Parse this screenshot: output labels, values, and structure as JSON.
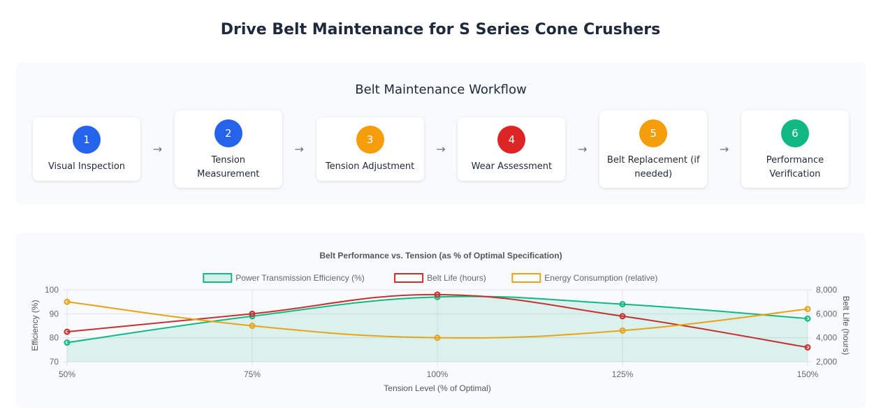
{
  "page": {
    "title": "Drive Belt Maintenance for S Series Cone Crushers"
  },
  "workflow": {
    "title": "Belt Maintenance Workflow",
    "arrow": "→",
    "steps": [
      {
        "number": "1",
        "label": "Visual Inspection",
        "color": "#2563eb"
      },
      {
        "number": "2",
        "label": "Tension Measurement",
        "color": "#2563eb"
      },
      {
        "number": "3",
        "label": "Tension Adjustment",
        "color": "#f59e0b"
      },
      {
        "number": "4",
        "label": "Wear Assessment",
        "color": "#dc2626"
      },
      {
        "number": "5",
        "label": "Belt Replacement (if needed)",
        "color": "#f59e0b"
      },
      {
        "number": "6",
        "label": "Performance Verification",
        "color": "#10b981"
      }
    ]
  },
  "chart_data": {
    "type": "line",
    "title": "Belt Performance vs. Tension (as % of Optimal Specification)",
    "xlabel": "Tension Level (% of Optimal)",
    "ylabel": "Efficiency (%)",
    "y2label": "Belt Life (hours)",
    "categories": [
      "50%",
      "75%",
      "100%",
      "125%",
      "150%"
    ],
    "ylim": [
      70,
      100
    ],
    "yticks": [
      70,
      80,
      90,
      100
    ],
    "y2lim": [
      2000,
      8000
    ],
    "y2ticks": [
      "2,000",
      "4,000",
      "6,000",
      "8,000"
    ],
    "legend_position": "top",
    "grid": true,
    "series": [
      {
        "name": "Power Transmission Efficiency (%)",
        "axis": "left",
        "values": [
          78,
          89,
          97,
          94,
          88
        ],
        "color": "#10b981",
        "fill": true
      },
      {
        "name": "Belt Life (hours)",
        "axis": "right",
        "values": [
          4500,
          6000,
          7600,
          5800,
          3200
        ],
        "color": "#c53030",
        "fill": false
      },
      {
        "name": "Energy Consumption (relative)",
        "axis": "left",
        "values": [
          95,
          85,
          80,
          83,
          92
        ],
        "color": "#e8a317",
        "fill": false
      }
    ]
  }
}
